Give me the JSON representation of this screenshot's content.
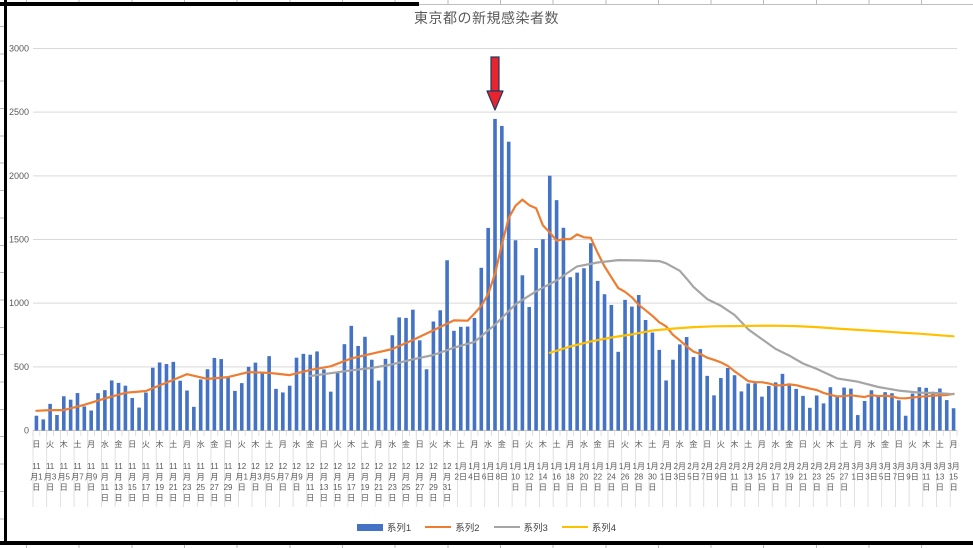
{
  "chart_data": {
    "type": "bar+line",
    "title": "東京都の新規感染者数",
    "y_axis": {
      "min": 0,
      "max": 3000,
      "step": 500,
      "ticks": [
        0,
        500,
        1000,
        1500,
        2000,
        2500,
        3000
      ]
    },
    "x_axis": {
      "label_interval_days": 2,
      "labels": [
        "日 11月1日",
        "火 11月3日",
        "木 11月5日",
        "土 11月7日",
        "月 11月9日",
        "水 11月11日",
        "金 11月13日",
        "日 11月15日",
        "火 11月17日",
        "木 11月19日",
        "土 11月21日",
        "月 11月23日",
        "水 11月25日",
        "金 11月27日",
        "日 11月29日",
        "火 12月1日",
        "木 12月3日",
        "土 12月5日",
        "月 12月7日",
        "水 12月9日",
        "金 12月11日",
        "日 12月13日",
        "火 12月15日",
        "木 12月17日",
        "土 12月19日",
        "月 12月21日",
        "水 12月23日",
        "金 12月25日",
        "日 12月27日",
        "火 12月29日",
        "木 12月31日",
        "土 1月2日",
        "月 1月4日",
        "水 1月6日",
        "金 1月8日",
        "日 1月10日",
        "火 1月12日",
        "木 1月14日",
        "土 1月16日",
        "月 1月18日",
        "水 1月20日",
        "金 1月22日",
        "日 1月24日",
        "火 1月26日",
        "木 1月28日",
        "土 1月30日",
        "月 2月1日",
        "水 2月3日",
        "金 2月5日",
        "日 2月7日",
        "火 2月9日",
        "木 2月11日",
        "土 2月13日",
        "月 2月15日",
        "水 2月17日",
        "金 2月19日",
        "日 2月21日",
        "火 2月23日",
        "木 2月25日",
        "土 2月27日",
        "月 3月1日",
        "水 3月3日",
        "金 3月5日",
        "日 3月7日",
        "火 3月9日",
        "木 3月11日",
        "土 3月13日",
        "月 3月15日"
      ]
    },
    "series": [
      {
        "name": "系列1",
        "type": "bar",
        "color": "#4472C4",
        "values": [
          116,
          87,
          209,
          122,
          269,
          242,
          294,
          189,
          157,
          293,
          317,
          393,
          374,
          352,
          255,
          180,
          298,
          493,
          534,
          522,
          539,
          391,
          314,
          186,
          401,
          481,
          570,
          561,
          418,
          311,
          372,
          500,
          533,
          449,
          584,
          327,
          299,
          352,
          572,
          602,
          595,
          621,
          480,
          305,
          460,
          678,
          822,
          664,
          736,
          556,
          392,
          563,
          748,
          888,
          884,
          949,
          708,
          481,
          856,
          944,
          1337,
          783,
          814,
          816,
          884,
          1278,
          1591,
          2447,
          2392,
          2268,
          1494,
          1219,
          970,
          1433,
          1502,
          2001,
          1809,
          1592,
          1204,
          1240,
          1274,
          1471,
          1175,
          1070,
          986,
          618,
          1026,
          973,
          1064,
          868,
          769,
          633,
          393,
          556,
          676,
          734,
          577,
          639,
          429,
          276,
          412,
          491,
          434,
          307,
          369,
          371,
          266,
          350,
          378,
          445,
          353,
          327,
          272,
          178,
          275,
          213,
          340,
          270,
          337,
          329,
          121,
          232,
          316,
          279,
          301,
          293,
          237,
          116,
          290,
          340,
          335,
          304,
          330,
          239,
          175
        ]
      },
      {
        "name": "系列2",
        "type": "line",
        "color": "#ED7D31",
        "points": [
          [
            0,
            155
          ],
          [
            2,
            160
          ],
          [
            4,
            160
          ],
          [
            7,
            202
          ],
          [
            10,
            252
          ],
          [
            13,
            296
          ],
          [
            16,
            310
          ],
          [
            19,
            376
          ],
          [
            22,
            442
          ],
          [
            25,
            405
          ],
          [
            28,
            419
          ],
          [
            31,
            459
          ],
          [
            34,
            452
          ],
          [
            37,
            435
          ],
          [
            40,
            476
          ],
          [
            43,
            504
          ],
          [
            46,
            566
          ],
          [
            49,
            603
          ],
          [
            52,
            640
          ],
          [
            55,
            711
          ],
          [
            58,
            788
          ],
          [
            61,
            865
          ],
          [
            63,
            862
          ],
          [
            64,
            919
          ],
          [
            65,
            979
          ],
          [
            66,
            1072
          ],
          [
            67,
            1230
          ],
          [
            68,
            1460
          ],
          [
            69,
            1668
          ],
          [
            70,
            1765
          ],
          [
            71,
            1813
          ],
          [
            72,
            1769
          ],
          [
            73,
            1746
          ],
          [
            74,
            1611
          ],
          [
            75,
            1555
          ],
          [
            76,
            1490
          ],
          [
            77,
            1504
          ],
          [
            78,
            1502
          ],
          [
            79,
            1540
          ],
          [
            80,
            1517
          ],
          [
            81,
            1513
          ],
          [
            82,
            1395
          ],
          [
            83,
            1289
          ],
          [
            84,
            1203
          ],
          [
            85,
            1119
          ],
          [
            86,
            1089
          ],
          [
            87,
            1046
          ],
          [
            88,
            987
          ],
          [
            89,
            944
          ],
          [
            90,
            901
          ],
          [
            91,
            850
          ],
          [
            92,
            818
          ],
          [
            93,
            751
          ],
          [
            94,
            708
          ],
          [
            95,
            661
          ],
          [
            96,
            620
          ],
          [
            97,
            601
          ],
          [
            98,
            572
          ],
          [
            99,
            555
          ],
          [
            100,
            535
          ],
          [
            101,
            508
          ],
          [
            102,
            465
          ],
          [
            103,
            427
          ],
          [
            104,
            388
          ],
          [
            105,
            380
          ],
          [
            106,
            379
          ],
          [
            107,
            370
          ],
          [
            108,
            354
          ],
          [
            109,
            355
          ],
          [
            110,
            362
          ],
          [
            111,
            356
          ],
          [
            112,
            342
          ],
          [
            113,
            329
          ],
          [
            114,
            318
          ],
          [
            115,
            295
          ],
          [
            116,
            280
          ],
          [
            117,
            268
          ],
          [
            118,
            269
          ],
          [
            119,
            277
          ],
          [
            120,
            269
          ],
          [
            121,
            263
          ],
          [
            122,
            278
          ],
          [
            123,
            269
          ],
          [
            124,
            274
          ],
          [
            125,
            267
          ],
          [
            126,
            254
          ],
          [
            127,
            253
          ],
          [
            129,
            265
          ],
          [
            131,
            274
          ],
          [
            133,
            279
          ],
          [
            134,
            288
          ]
        ]
      },
      {
        "name": "系列3",
        "type": "line",
        "color": "#A5A5A5",
        "points": [
          [
            40,
            428
          ],
          [
            43,
            450
          ],
          [
            46,
            473
          ],
          [
            49,
            491
          ],
          [
            52,
            520
          ],
          [
            55,
            559
          ],
          [
            58,
            593
          ],
          [
            61,
            650
          ],
          [
            64,
            696
          ],
          [
            67,
            831
          ],
          [
            70,
            991
          ],
          [
            73,
            1093
          ],
          [
            76,
            1179
          ],
          [
            79,
            1289
          ],
          [
            82,
            1319
          ],
          [
            85,
            1338
          ],
          [
            88,
            1336
          ],
          [
            91,
            1330
          ],
          [
            92,
            1313
          ],
          [
            94,
            1254
          ],
          [
            95,
            1193
          ],
          [
            96,
            1128
          ],
          [
            98,
            1032
          ],
          [
            100,
            979
          ],
          [
            102,
            907
          ],
          [
            104,
            795
          ],
          [
            106,
            718
          ],
          [
            108,
            641
          ],
          [
            110,
            588
          ],
          [
            112,
            526
          ],
          [
            114,
            484
          ],
          [
            117,
            409
          ],
          [
            120,
            383
          ],
          [
            123,
            342
          ],
          [
            126,
            313
          ],
          [
            129,
            298
          ],
          [
            132,
            293
          ],
          [
            134,
            285
          ]
        ]
      },
      {
        "name": "系列4",
        "type": "line",
        "color": "#FFC000",
        "points": [
          [
            75,
            610
          ],
          [
            78,
            660
          ],
          [
            81,
            700
          ],
          [
            84,
            730
          ],
          [
            87,
            755
          ],
          [
            90,
            785
          ],
          [
            93,
            800
          ],
          [
            96,
            812
          ],
          [
            99,
            818
          ],
          [
            102,
            820
          ],
          [
            105,
            822
          ],
          [
            108,
            823
          ],
          [
            111,
            820
          ],
          [
            114,
            812
          ],
          [
            117,
            800
          ],
          [
            120,
            790
          ],
          [
            123,
            781
          ],
          [
            126,
            770
          ],
          [
            129,
            760
          ],
          [
            132,
            748
          ],
          [
            134,
            740
          ]
        ]
      }
    ],
    "annotation": {
      "type": "down-arrow",
      "day_index": 67,
      "fill": "#e8252d",
      "outline": "#1F3864"
    },
    "grid_color": "#D9D9D9",
    "axis_text_color": "#595959"
  },
  "legend": {
    "items": [
      {
        "label": "系列1",
        "color": "#4472C4",
        "marker": "bar"
      },
      {
        "label": "系列2",
        "color": "#ED7D31",
        "marker": "line"
      },
      {
        "label": "系列3",
        "color": "#A5A5A5",
        "marker": "line"
      },
      {
        "label": "系列4",
        "color": "#FFC000",
        "marker": "line"
      }
    ]
  }
}
